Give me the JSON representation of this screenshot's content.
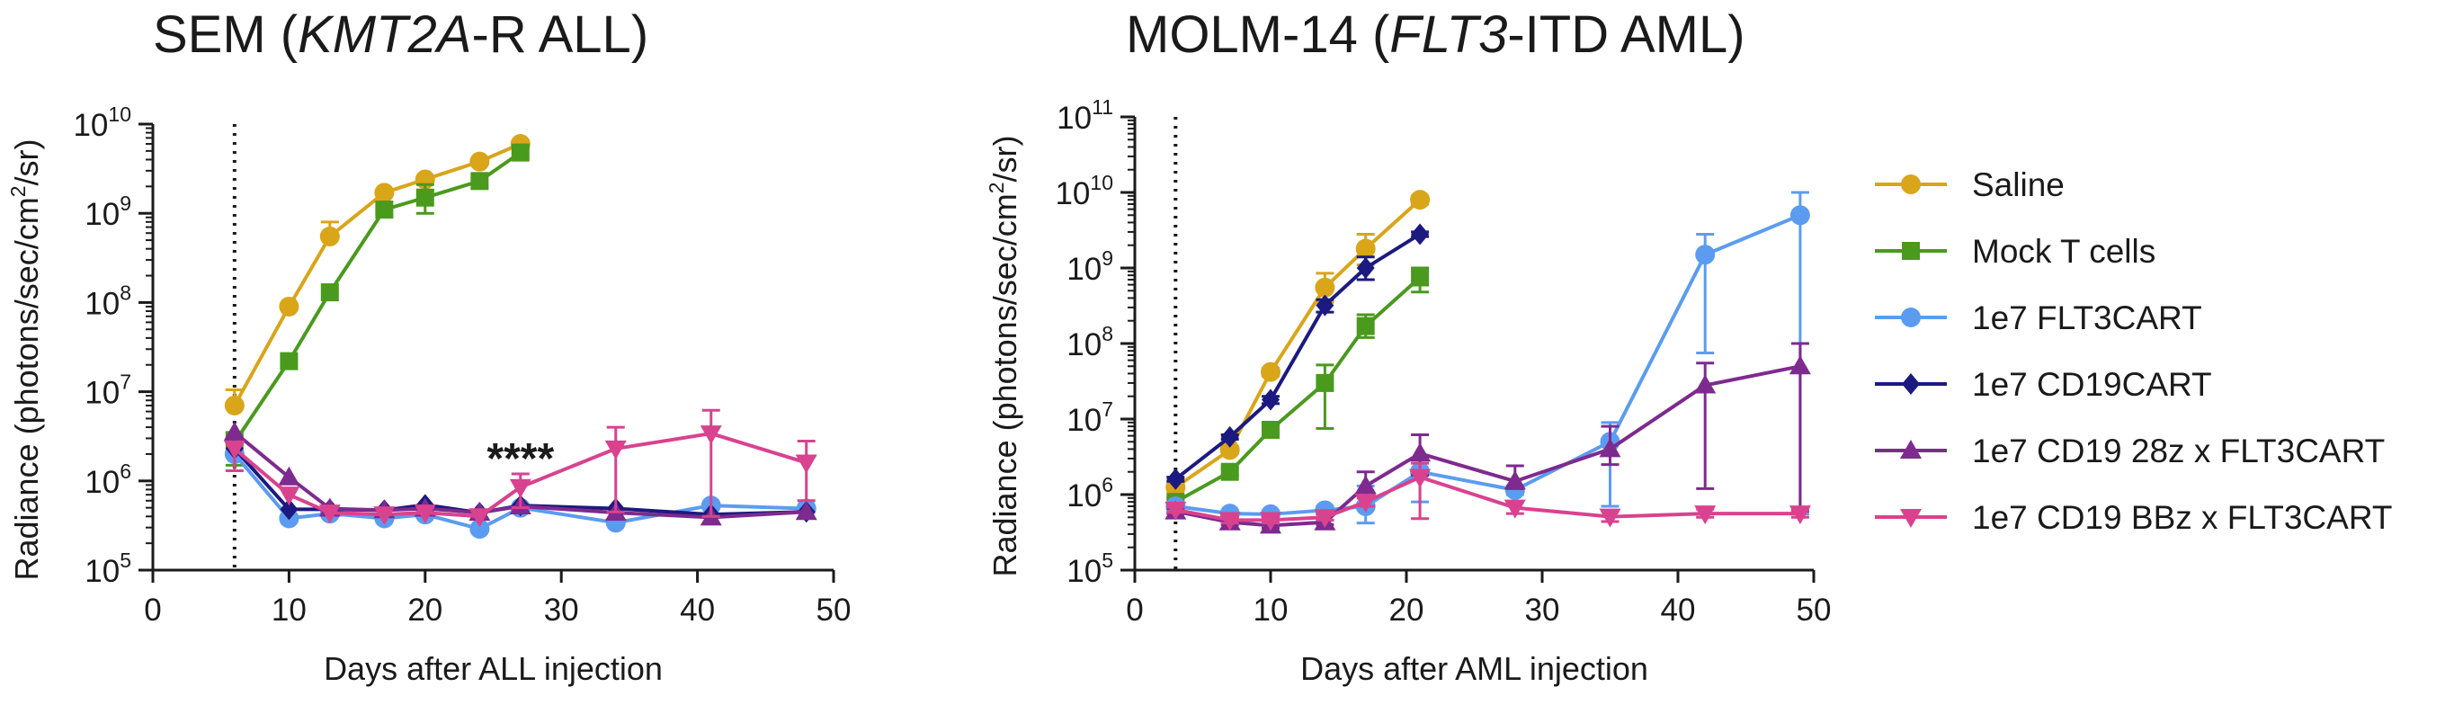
{
  "colors": {
    "Saline": "#d9a519",
    "Mock T cells": "#4a9a1e",
    "1e7 FLT3CART": "#5b9cf0",
    "1e7 CD19CART": "#1c1a80",
    "1e7 CD19 28z x FLT3CART": "#7e2a8e",
    "1e7 CD19 BBz x FLT3CART": "#d9428f"
  },
  "legend": {
    "position": "right",
    "entries": [
      {
        "name": "Saline",
        "marker": "circle"
      },
      {
        "name": "Mock T cells",
        "marker": "square"
      },
      {
        "name": "1e7 FLT3CART",
        "marker": "circle"
      },
      {
        "name": "1e7 CD19CART",
        "marker": "diamond"
      },
      {
        "name": "1e7 CD19 28z x FLT3CART",
        "marker": "triangle-up"
      },
      {
        "name": "1e7 CD19 BBz x FLT3CART",
        "marker": "triangle-down"
      }
    ]
  },
  "chart_data": [
    {
      "type": "line",
      "title_parts": [
        "SEM (",
        "KMT2A",
        "-R ALL)"
      ],
      "xlabel": "Days after ALL injection",
      "ylabel_parts": [
        "Radiance (photons/sec/cm",
        "2",
        "/sr)"
      ],
      "xlim": [
        0,
        50
      ],
      "ylim_log10": [
        5,
        10
      ],
      "y_scale": "log",
      "xticks": [
        0,
        10,
        20,
        30,
        40,
        50
      ],
      "yticks": [
        {
          "exp": 10,
          "label": "10",
          "sup": "10"
        },
        {
          "exp": 9,
          "label": "10",
          "sup": "9"
        },
        {
          "exp": 8,
          "label": "10",
          "sup": "8"
        },
        {
          "exp": 7,
          "label": "10",
          "sup": "7"
        },
        {
          "exp": 6,
          "label": "10",
          "sup": "6"
        },
        {
          "exp": 5,
          "label": "10",
          "sup": "5"
        }
      ],
      "dotted_vline_x": 6,
      "annotation": {
        "text": "****",
        "x": 27,
        "y_log10": 6.25
      },
      "series": [
        {
          "name": "Saline",
          "x": [
            6,
            10,
            13,
            17,
            20,
            24,
            27
          ],
          "y": [
            7000000,
            90000000,
            550000000,
            1700000000,
            2400000000,
            3800000000,
            6000000000
          ],
          "err_up": [
            10500000,
            90000000,
            800000000,
            1700000000,
            2400000000,
            3800000000,
            6500000000
          ]
        },
        {
          "name": "Mock T cells",
          "x": [
            6,
            10,
            13,
            17,
            20,
            24,
            27
          ],
          "y": [
            2700000,
            22000000,
            130000000,
            1100000000,
            1500000000,
            2300000000,
            4800000000
          ],
          "err_up": [
            3500000,
            22000000,
            130000000,
            1100000000,
            2100000000,
            2300000000,
            5500000000
          ],
          "err_down": [
            1500000,
            22000000,
            130000000,
            1100000000,
            1000000000,
            2300000000,
            4800000000
          ]
        },
        {
          "name": "1e7 FLT3CART",
          "x": [
            6,
            10,
            13,
            17,
            20,
            24,
            27,
            34,
            41,
            48
          ],
          "y": [
            2000000,
            380000,
            430000,
            380000,
            420000,
            290000,
            500000,
            340000,
            530000,
            490000
          ]
        },
        {
          "name": "1e7 CD19CART",
          "x": [
            6,
            10,
            13,
            17,
            20,
            24,
            27,
            34,
            41,
            48
          ],
          "y": [
            2300000,
            480000,
            480000,
            470000,
            540000,
            440000,
            530000,
            490000,
            420000,
            450000
          ]
        },
        {
          "name": "1e7 CD19 28z x FLT3CART",
          "x": [
            6,
            10,
            13,
            17,
            20,
            24,
            27,
            34,
            41,
            48
          ],
          "y": [
            3500000,
            1100000,
            490000,
            470000,
            490000,
            440000,
            520000,
            440000,
            390000,
            450000
          ]
        },
        {
          "name": "1e7 CD19 BBz x FLT3CART",
          "x": [
            6,
            10,
            13,
            17,
            20,
            24,
            27,
            34,
            41,
            48
          ],
          "y": [
            2300000,
            700000,
            440000,
            420000,
            440000,
            400000,
            850000,
            2300000,
            3400000,
            1600000
          ],
          "err_up": [
            2300000,
            700000,
            440000,
            420000,
            440000,
            400000,
            1200000,
            4000000,
            6200000,
            2800000
          ],
          "err_down": [
            1300000,
            700000,
            440000,
            420000,
            440000,
            400000,
            500000,
            450000,
            400000,
            600000
          ]
        }
      ]
    },
    {
      "type": "line",
      "title_parts": [
        "MOLM-14 (",
        "FLT3",
        "-ITD AML)"
      ],
      "xlabel": "Days after AML injection",
      "ylabel_parts": [
        "Radiance (photons/sec/cm",
        "2",
        "/sr)"
      ],
      "xlim": [
        0,
        50
      ],
      "ylim_log10": [
        5,
        11
      ],
      "y_scale": "log",
      "xticks": [
        0,
        10,
        20,
        30,
        40,
        50
      ],
      "yticks": [
        {
          "exp": 11,
          "label": "10",
          "sup": "11"
        },
        {
          "exp": 10,
          "label": "10",
          "sup": "10"
        },
        {
          "exp": 9,
          "label": "10",
          "sup": "9"
        },
        {
          "exp": 8,
          "label": "10",
          "sup": "8"
        },
        {
          "exp": 7,
          "label": "10",
          "sup": "7"
        },
        {
          "exp": 6,
          "label": "10",
          "sup": "6"
        },
        {
          "exp": 5,
          "label": "10",
          "sup": "5"
        }
      ],
      "dotted_vline_x": 3,
      "series": [
        {
          "name": "Saline",
          "x": [
            3,
            7,
            10,
            14,
            17,
            21
          ],
          "y": [
            1250000,
            3900000,
            42000000,
            550000000,
            1800000000,
            8000000000
          ],
          "err_up": [
            1400000,
            4300000,
            47000000,
            850000000,
            2800000000,
            9000000000
          ],
          "err_down": [
            1100000,
            3500000,
            37000000,
            350000000,
            1100000000,
            7000000000
          ]
        },
        {
          "name": "Mock T cells",
          "x": [
            3,
            7,
            10,
            14,
            17,
            21
          ],
          "y": [
            800000,
            2000000,
            7200000,
            30000000,
            170000000,
            750000000
          ],
          "err_up": [
            900000,
            2200000,
            8000000,
            52000000,
            240000000,
            1000000000
          ],
          "err_down": [
            700000,
            1800000,
            6500000,
            7500000,
            120000000,
            480000000
          ]
        },
        {
          "name": "1e7 FLT3CART",
          "x": [
            3,
            7,
            10,
            14,
            17,
            21,
            28,
            35,
            42,
            49
          ],
          "y": [
            700000,
            560000,
            550000,
            620000,
            700000,
            2000000,
            1150000,
            5000000,
            1500000000,
            5000000000
          ],
          "err_up": [
            800000,
            600000,
            600000,
            700000,
            1300000,
            3000000,
            1300000,
            9000000,
            2800000000,
            10000000000
          ],
          "err_down": [
            600000,
            520000,
            500000,
            550000,
            420000,
            800000,
            1000000,
            700000,
            75000000,
            550000
          ]
        },
        {
          "name": "1e7 CD19CART",
          "x": [
            3,
            7,
            10,
            14,
            17,
            21
          ],
          "y": [
            1600000,
            5800000,
            18000000,
            320000000,
            1000000000,
            2800000000
          ],
          "err_up": [
            1700000,
            6200000,
            20000000,
            380000000,
            1400000000,
            3000000000
          ],
          "err_down": [
            1500000,
            5400000,
            16000000,
            260000000,
            700000000,
            2600000000
          ]
        },
        {
          "name": "1e7 CD19 28z x FLT3CART",
          "x": [
            3,
            7,
            10,
            14,
            17,
            21,
            28,
            35,
            42,
            49
          ],
          "y": [
            600000,
            430000,
            390000,
            430000,
            1300000,
            3500000,
            1500000,
            4000000,
            28000000,
            50000000
          ],
          "err_up": [
            650000,
            460000,
            420000,
            460000,
            2000000,
            6200000,
            2400000,
            8000000,
            55000000,
            100000000
          ],
          "err_down": [
            560000,
            400000,
            360000,
            400000,
            700000,
            1800000,
            1200000,
            2500000,
            1200000,
            600000
          ]
        },
        {
          "name": "1e7 CD19 BBz x FLT3CART",
          "x": [
            3,
            7,
            10,
            14,
            17,
            21,
            28,
            35,
            42,
            49
          ],
          "y": [
            630000,
            460000,
            460000,
            500000,
            800000,
            1700000,
            670000,
            510000,
            560000,
            560000
          ],
          "err_up": [
            680000,
            500000,
            500000,
            550000,
            900000,
            2600000,
            800000,
            600000,
            640000,
            620000
          ],
          "err_down": [
            580000,
            420000,
            420000,
            460000,
            700000,
            480000,
            560000,
            440000,
            500000,
            500000
          ]
        }
      ]
    }
  ]
}
